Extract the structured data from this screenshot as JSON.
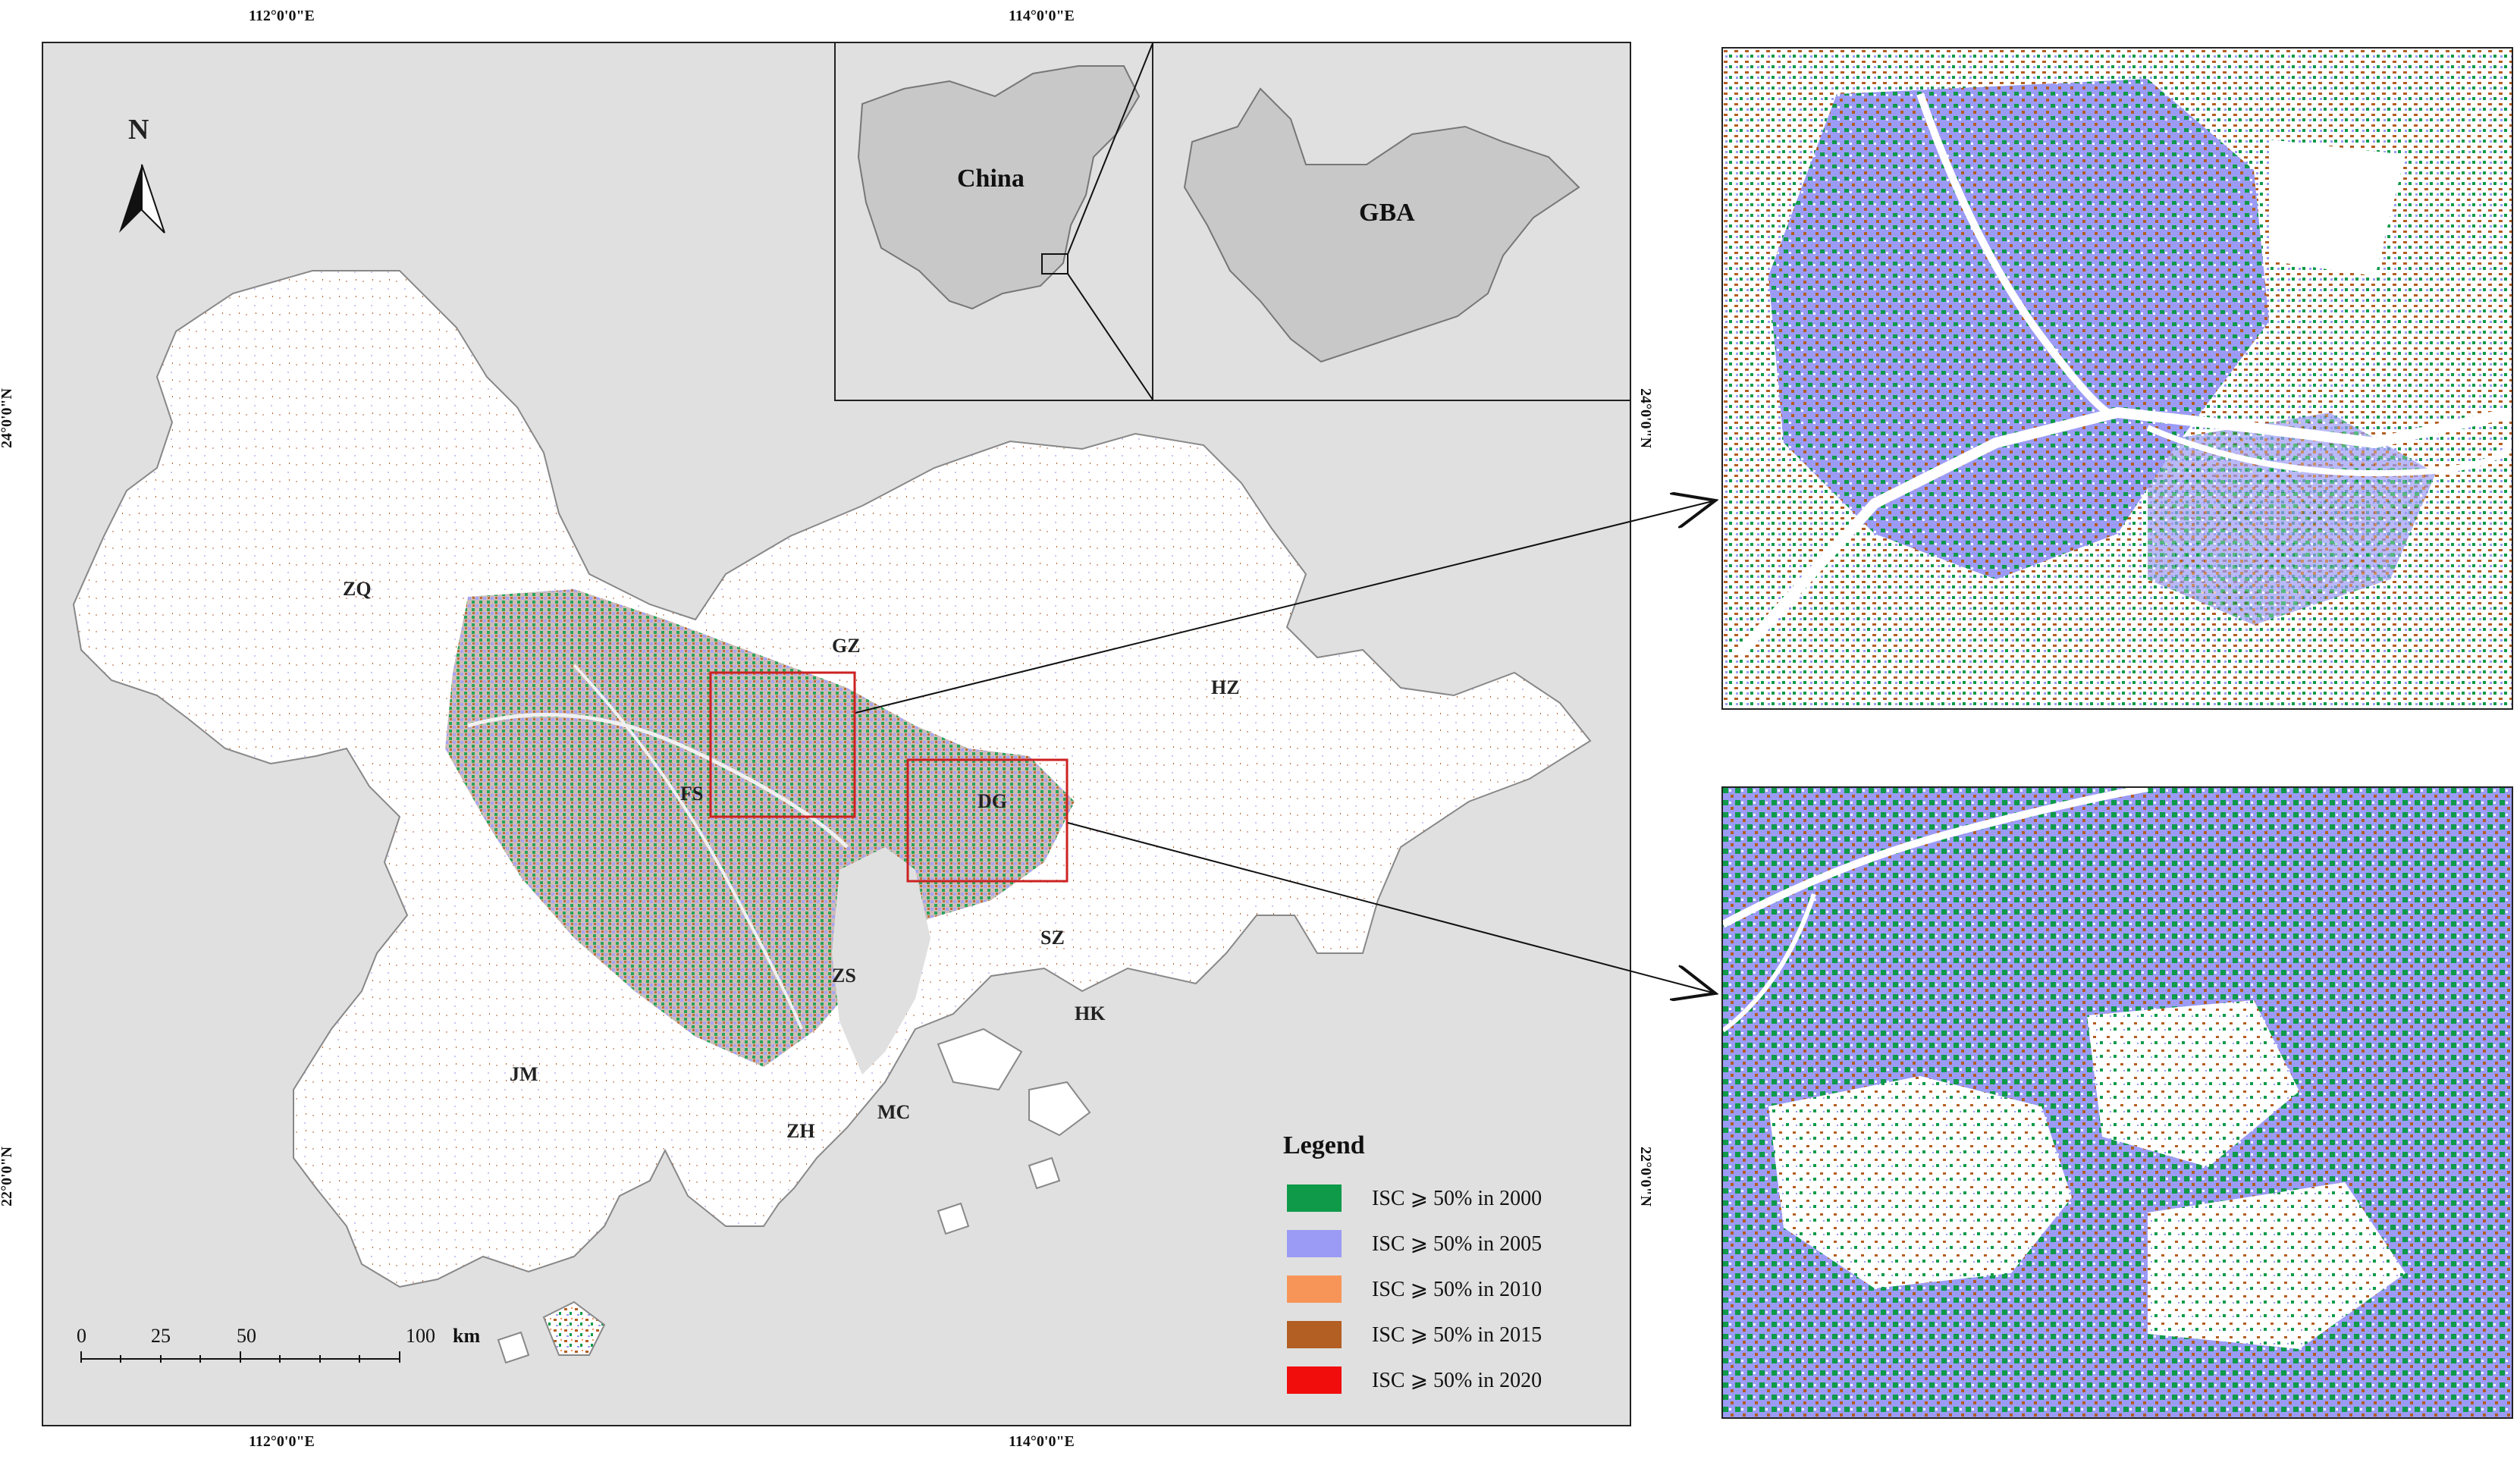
{
  "coords": {
    "top": [
      "112°0'0\"E",
      "114°0'0\"E"
    ],
    "bottom": [
      "112°0'0\"E",
      "114°0'0\"E"
    ],
    "left": [
      "24°0'0\"N",
      "22°0'0\"N"
    ],
    "right": [
      "24°0'0\"N",
      "22°0'0\"N"
    ]
  },
  "north_arrow": {
    "label": "N"
  },
  "cities": {
    "zq": "ZQ",
    "gz": "GZ",
    "hz": "HZ",
    "fs": "FS",
    "dg": "DG",
    "sz": "SZ",
    "zs": "ZS",
    "hk": "HK",
    "jm": "JM",
    "zh": "ZH",
    "mc": "MC"
  },
  "inset": {
    "china_label": "China",
    "gba_label": "GBA"
  },
  "legend": {
    "title": "Legend",
    "items": [
      {
        "label": "ISC ⩾ 50% in 2000",
        "color": "#0f9a4a"
      },
      {
        "label": "ISC ⩾ 50% in 2005",
        "color": "#9b9bf5"
      },
      {
        "label": "ISC ⩾ 50% in 2010",
        "color": "#f79559"
      },
      {
        "label": "ISC ⩾ 50% in 2015",
        "color": "#b35e22"
      },
      {
        "label": "ISC ⩾ 50% in 2020",
        "color": "#f20d0d"
      }
    ]
  },
  "scale_bar": {
    "ticks": [
      "0",
      "25",
      "50",
      "100"
    ],
    "unit": "km"
  },
  "colors": {
    "map_background": "#e0e0e0",
    "land": "#ffffff",
    "zoom_box": "#cc2222"
  }
}
